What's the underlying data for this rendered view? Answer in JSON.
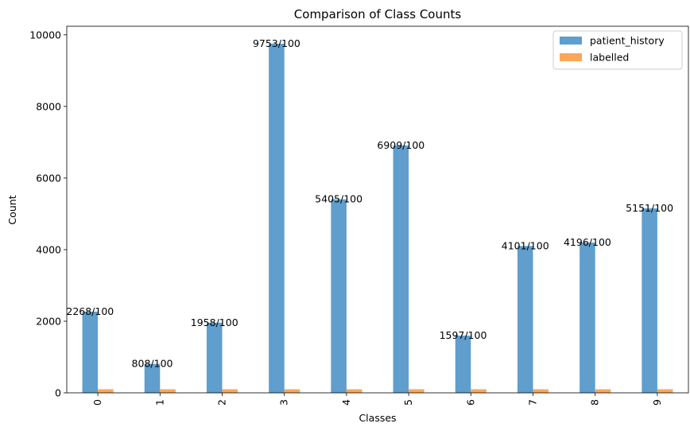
{
  "chart_data": {
    "type": "bar",
    "title": "Comparison of Class Counts",
    "xlabel": "Classes",
    "ylabel": "Count",
    "categories": [
      "0",
      "1",
      "2",
      "3",
      "4",
      "5",
      "6",
      "7",
      "8",
      "9"
    ],
    "series": [
      {
        "name": "patient_history",
        "color": "#5f9ecd",
        "values": [
          2268,
          808,
          1958,
          9753,
          5405,
          6909,
          1597,
          4101,
          4196,
          5151
        ]
      },
      {
        "name": "labelled",
        "color": "#fca657",
        "values": [
          100,
          100,
          100,
          100,
          100,
          100,
          100,
          100,
          100,
          100
        ]
      }
    ],
    "bar_labels": [
      "2268/100",
      "808/100",
      "1958/100",
      "9753/100",
      "5405/100",
      "6909/100",
      "1597/100",
      "4101/100",
      "4196/100",
      "5151/100"
    ],
    "ylim": [
      0,
      10240
    ],
    "yticks": [
      0,
      2000,
      4000,
      6000,
      8000,
      10000
    ],
    "ytick_labels": [
      "0",
      "2000",
      "4000",
      "6000",
      "8000",
      "10000"
    ],
    "grid": false,
    "legend_position": "top-right"
  }
}
